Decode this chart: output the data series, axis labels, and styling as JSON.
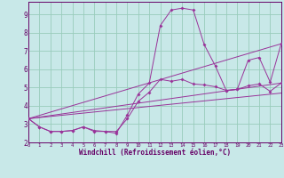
{
  "background_color": "#c8e8e8",
  "grid_color": "#99ccbb",
  "line_color": "#993399",
  "xlim": [
    0,
    23
  ],
  "ylim": [
    2.0,
    9.7
  ],
  "xticks": [
    0,
    1,
    2,
    3,
    4,
    5,
    6,
    7,
    8,
    9,
    10,
    11,
    12,
    13,
    14,
    15,
    16,
    17,
    18,
    19,
    20,
    21,
    22,
    23
  ],
  "yticks": [
    2,
    3,
    4,
    5,
    6,
    7,
    8,
    9
  ],
  "xlabel": "Windchill (Refroidissement éolien,°C)",
  "lines_with_markers": [
    {
      "x": [
        0,
        1,
        2,
        3,
        4,
        5,
        6,
        7,
        8,
        9,
        10,
        11,
        12,
        13,
        14,
        15,
        16,
        17,
        18,
        19,
        20,
        21,
        22,
        23
      ],
      "y": [
        3.3,
        2.85,
        2.6,
        2.6,
        2.65,
        2.85,
        2.6,
        2.6,
        2.5,
        3.5,
        4.65,
        5.25,
        8.4,
        9.25,
        9.35,
        9.25,
        7.35,
        6.2,
        4.85,
        4.9,
        6.5,
        6.65,
        5.3,
        7.4
      ]
    },
    {
      "x": [
        0,
        1,
        2,
        3,
        4,
        5,
        6,
        7,
        8,
        9,
        10,
        11,
        12,
        13,
        14,
        15,
        16,
        17,
        18,
        19,
        20,
        21,
        22,
        23
      ],
      "y": [
        3.3,
        2.85,
        2.6,
        2.6,
        2.65,
        2.85,
        2.65,
        2.6,
        2.6,
        3.3,
        4.25,
        4.75,
        5.45,
        5.35,
        5.45,
        5.2,
        5.15,
        5.05,
        4.85,
        4.9,
        5.1,
        5.2,
        4.8,
        5.25
      ]
    }
  ],
  "lines_no_markers": [
    {
      "x": [
        0,
        23
      ],
      "y": [
        3.3,
        7.4
      ]
    },
    {
      "x": [
        0,
        23
      ],
      "y": [
        3.3,
        5.25
      ]
    },
    {
      "x": [
        0,
        23
      ],
      "y": [
        3.3,
        4.7
      ]
    }
  ]
}
